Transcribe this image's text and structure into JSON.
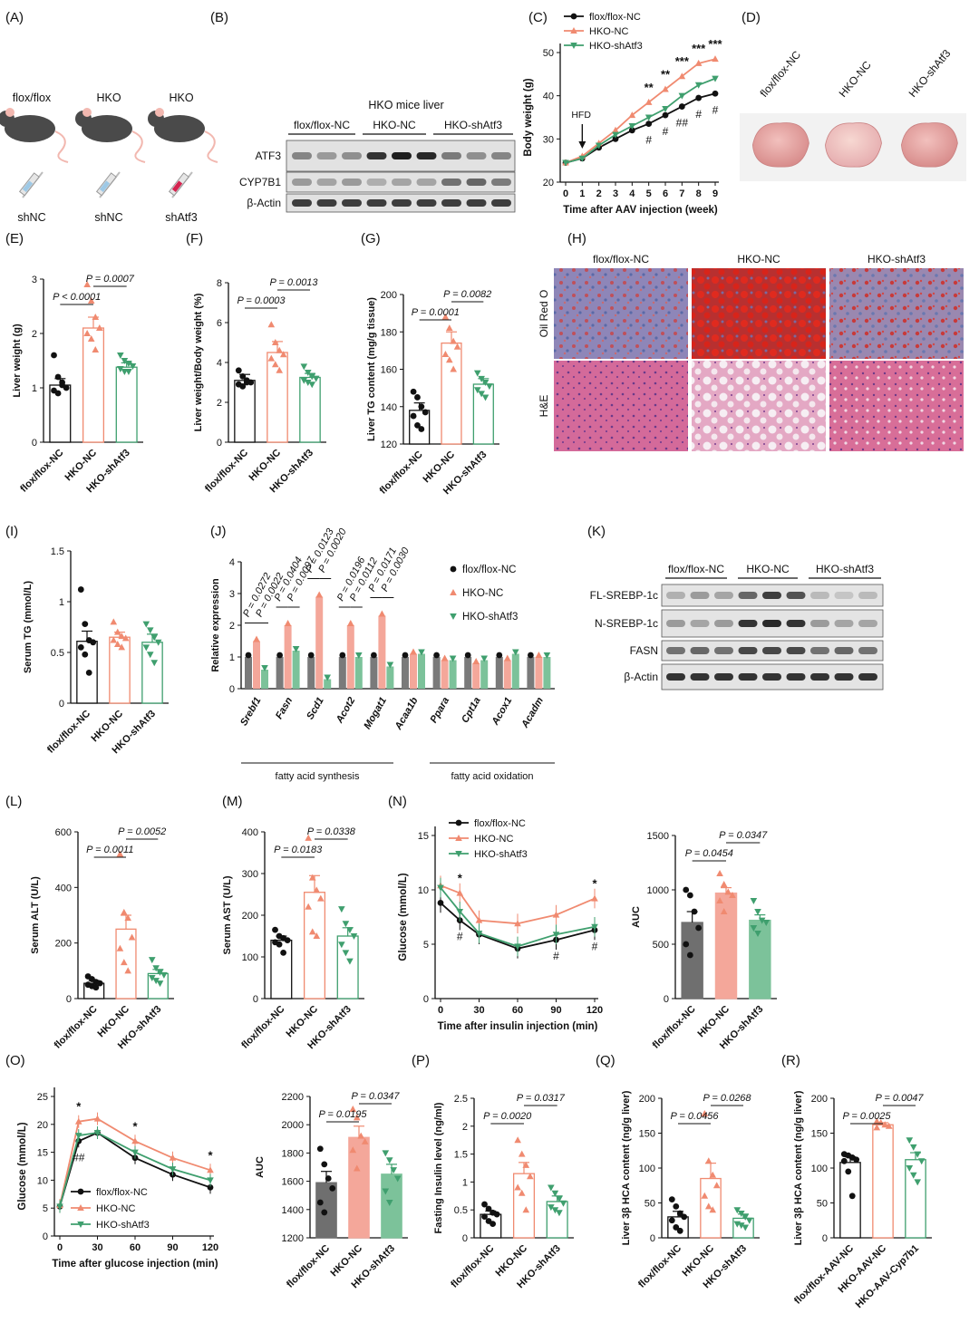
{
  "colors": {
    "black": "#111111",
    "salmon": "#f08a70",
    "green": "#3f9f6e",
    "grey": "#7a7a7a"
  },
  "groups": [
    "flox/flox-NC",
    "HKO-NC",
    "HKO-shAtf3"
  ],
  "panel_letters": [
    "(A)",
    "(B)",
    "(C)",
    "(D)",
    "(E)",
    "(F)",
    "(G)",
    "(H)",
    "(I)",
    "(J)",
    "(K)",
    "(L)",
    "(M)",
    "(N)",
    "(O)",
    "(P)",
    "(Q)",
    "(R)"
  ],
  "panelA": {
    "mice": [
      "flox/flox",
      "HKO",
      "HKO"
    ],
    "injections": [
      "shNC",
      "shNC",
      "shAtf3"
    ]
  },
  "panelB": {
    "title": "HKO mice liver",
    "groups": [
      "flox/flox-NC",
      "HKO-NC",
      "HKO-shAtf3"
    ],
    "proteins": [
      "ATF3",
      "CYP7B1",
      "β-Actin"
    ]
  },
  "panelD": {
    "labels": [
      "flox/flox-NC",
      "HKO-NC",
      "HKO-shAtf3"
    ]
  },
  "panelH": {
    "columns": [
      "flox/flox-NC",
      "HKO-NC",
      "HKO-shAtf3"
    ],
    "rows": [
      "Oil Red O",
      "H&E"
    ]
  },
  "panelK": {
    "groups": [
      "flox/flox-NC",
      "HKO-NC",
      "HKO-shAtf3"
    ],
    "proteins": [
      "FL-SREBP-1c",
      "N-SREBP-1c",
      "FASN",
      "β-Actin"
    ]
  },
  "chart_data": [
    {
      "id": "C",
      "type": "line",
      "xlabel": "Time after AAV injection (week)",
      "ylabel": "Body weight (g)",
      "ylim": [
        20,
        50
      ],
      "yticks": [
        20,
        30,
        40,
        50
      ],
      "x": [
        0,
        1,
        2,
        3,
        4,
        5,
        6,
        7,
        8,
        9
      ],
      "annotation": "HFD",
      "series": [
        {
          "name": "flox/flox-NC",
          "values": [
            24.5,
            25.5,
            28,
            30,
            32,
            33.5,
            35.5,
            37.5,
            39.5,
            40.5
          ]
        },
        {
          "name": "HKO-NC",
          "values": [
            24.5,
            26,
            29,
            32,
            35.5,
            38.5,
            41.5,
            44.5,
            47.5,
            48.5
          ]
        },
        {
          "name": "HKO-shAtf3",
          "values": [
            24.5,
            25.5,
            28.5,
            31,
            33,
            35,
            37,
            40,
            42.5,
            44
          ]
        }
      ],
      "stars": [
        {
          "x": 5,
          "label": "**"
        },
        {
          "x": 6,
          "label": "**"
        },
        {
          "x": 7,
          "label": "***"
        },
        {
          "x": 8,
          "label": "***"
        },
        {
          "x": 9,
          "label": "***"
        }
      ],
      "hashes": [
        {
          "x": 5,
          "label": "#"
        },
        {
          "x": 6,
          "label": "#"
        },
        {
          "x": 7,
          "label": "##"
        },
        {
          "x": 8,
          "label": "#"
        },
        {
          "x": 9,
          "label": "#"
        }
      ]
    },
    {
      "id": "E",
      "type": "bar",
      "ylabel": "Liver weight (g)",
      "ylim": [
        0,
        3
      ],
      "yticks": [
        0,
        1,
        2,
        3
      ],
      "categories": [
        "flox/flox-NC",
        "HKO-NC",
        "HKO-shAtf3"
      ],
      "values": [
        1.05,
        2.1,
        1.38
      ],
      "sem": [
        0.12,
        0.2,
        0.08
      ],
      "points": [
        [
          1.6,
          1.2,
          1.05,
          1.0,
          0.95,
          0.9,
          1.1
        ],
        [
          2.9,
          2.6,
          2.3,
          2.1,
          2.0,
          1.9,
          1.7
        ],
        [
          1.6,
          1.5,
          1.45,
          1.4,
          1.35,
          1.3,
          1.3
        ]
      ],
      "comparisons": [
        {
          "a": 0,
          "b": 1,
          "label": "P < 0.0001"
        },
        {
          "a": 1,
          "b": 2,
          "label": "P = 0.0007"
        }
      ]
    },
    {
      "id": "F",
      "type": "bar",
      "ylabel": "Liver weight/Body weight (%)",
      "ylim": [
        0,
        8
      ],
      "yticks": [
        0,
        2,
        4,
        6,
        8
      ],
      "categories": [
        "flox/flox-NC",
        "HKO-NC",
        "HKO-shAtf3"
      ],
      "values": [
        3.1,
        4.5,
        3.25
      ],
      "sem": [
        0.3,
        0.55,
        0.2
      ],
      "points": [
        [
          3.6,
          3.3,
          3.1,
          3.0,
          2.9,
          2.8,
          3.0
        ],
        [
          5.9,
          5.0,
          4.6,
          4.4,
          4.2,
          3.9,
          3.6
        ],
        [
          3.8,
          3.5,
          3.3,
          3.2,
          3.1,
          3.0,
          2.9
        ]
      ],
      "comparisons": [
        {
          "a": 0,
          "b": 1,
          "label": "P = 0.0003"
        },
        {
          "a": 1,
          "b": 2,
          "label": "P = 0.0013"
        }
      ]
    },
    {
      "id": "G",
      "type": "bar",
      "ylabel": "Liver TG content (mg/g tissue)",
      "ylim": [
        120,
        200
      ],
      "yticks": [
        120,
        140,
        160,
        180,
        200
      ],
      "categories": [
        "flox/flox-NC",
        "HKO-NC",
        "HKO-shAtf3"
      ],
      "values": [
        138,
        174,
        152
      ],
      "sem": [
        4,
        6,
        3
      ],
      "points": [
        [
          148,
          145,
          140,
          137,
          135,
          130,
          128
        ],
        [
          188,
          182,
          175,
          172,
          168,
          165,
          160
        ],
        [
          158,
          155,
          153,
          151,
          149,
          147,
          145
        ]
      ],
      "comparisons": [
        {
          "a": 0,
          "b": 1,
          "label": "P = 0.0001"
        },
        {
          "a": 1,
          "b": 2,
          "label": "P = 0.0082"
        }
      ]
    },
    {
      "id": "I",
      "type": "bar",
      "ylabel": "Serum TG (mmol/L)",
      "ylim": [
        0,
        1.5
      ],
      "yticks": [
        0,
        0.5,
        1.0,
        1.5
      ],
      "categories": [
        "flox/flox-NC",
        "HKO-NC",
        "HKO-shAtf3"
      ],
      "values": [
        0.61,
        0.65,
        0.6
      ],
      "sem": [
        0.1,
        0.05,
        0.08
      ],
      "points": [
        [
          1.12,
          0.78,
          0.62,
          0.6,
          0.55,
          0.48,
          0.3
        ],
        [
          0.8,
          0.7,
          0.66,
          0.64,
          0.62,
          0.58,
          0.55
        ],
        [
          0.78,
          0.72,
          0.65,
          0.6,
          0.55,
          0.48,
          0.4
        ]
      ],
      "comparisons": []
    },
    {
      "id": "J",
      "type": "bar",
      "ylabel": "Relative expression",
      "ylim": [
        0,
        4
      ],
      "yticks": [
        0,
        1,
        2,
        3,
        4
      ],
      "categories": [
        "Srebf1",
        "Fasn",
        "Scd1",
        "Acot2",
        "Mogat1",
        "Acaa1b",
        "Ppara",
        "Cpt1a",
        "Acox1",
        "Acadm"
      ],
      "series": [
        {
          "name": "flox/flox-NC",
          "values": [
            1,
            1,
            1,
            1,
            1,
            1,
            1,
            1,
            1,
            1
          ]
        },
        {
          "name": "HKO-NC",
          "values": [
            1.5,
            2.0,
            2.9,
            2.0,
            2.3,
            1.1,
            0.9,
            0.8,
            0.9,
            1.0
          ]
        },
        {
          "name": "HKO-shAtf3",
          "values": [
            0.6,
            1.2,
            0.3,
            1.0,
            0.7,
            1.1,
            0.9,
            0.9,
            1.1,
            1.0
          ]
        }
      ],
      "pvalues": [
        {
          "cat": 0,
          "labels": [
            "P = 0.0272",
            "P = 0.0022"
          ]
        },
        {
          "cat": 1,
          "labels": [
            "P = 0.0404",
            "P = 0.0097"
          ]
        },
        {
          "cat": 2,
          "labels": [
            "P = 0.0123",
            "P = 0.0020"
          ]
        },
        {
          "cat": 3,
          "labels": [
            "P = 0.0196",
            "P = 0.0112"
          ]
        },
        {
          "cat": 4,
          "labels": [
            "P = 0.0171",
            "P = 0.0030"
          ]
        }
      ],
      "group_labels": [
        "fatty acid synthesis",
        "fatty acid oxidation"
      ]
    },
    {
      "id": "L",
      "type": "bar",
      "ylabel": "Serum ALT (U/L)",
      "ylim": [
        0,
        600
      ],
      "yticks": [
        0,
        200,
        400,
        600
      ],
      "categories": [
        "flox/flox-NC",
        "HKO-NC",
        "HKO-shAtf3"
      ],
      "values": [
        55,
        250,
        90
      ],
      "sem": [
        10,
        50,
        15
      ],
      "points": [
        [
          80,
          70,
          60,
          55,
          50,
          45,
          40
        ],
        [
          520,
          310,
          290,
          220,
          180,
          130,
          100
        ],
        [
          140,
          110,
          95,
          85,
          75,
          65,
          55
        ]
      ],
      "comparisons": [
        {
          "a": 0,
          "b": 1,
          "label": "P = 0.0011"
        },
        {
          "a": 1,
          "b": 2,
          "label": "P = 0.0052"
        }
      ]
    },
    {
      "id": "M",
      "type": "bar",
      "ylabel": "Serum AST (U/L)",
      "ylim": [
        0,
        400
      ],
      "yticks": [
        0,
        100,
        200,
        300,
        400
      ],
      "categories": [
        "flox/flox-NC",
        "HKO-NC",
        "HKO-shAtf3"
      ],
      "values": [
        140,
        255,
        150
      ],
      "sem": [
        10,
        40,
        20
      ],
      "points": [
        [
          165,
          150,
          145,
          140,
          135,
          130,
          110
        ],
        [
          385,
          290,
          260,
          240,
          220,
          160,
          150
        ],
        [
          215,
          180,
          165,
          150,
          130,
          110,
          90
        ]
      ],
      "comparisons": [
        {
          "a": 0,
          "b": 1,
          "label": "P = 0.0183"
        },
        {
          "a": 1,
          "b": 2,
          "label": "P = 0.0338"
        }
      ]
    },
    {
      "id": "N",
      "type": "line",
      "xlabel": "Time after insulin injection (min)",
      "ylabel": "Glucose (mmol/L)",
      "ylim": [
        0,
        15
      ],
      "yticks": [
        0,
        5,
        10,
        15
      ],
      "x": [
        0,
        15,
        30,
        60,
        90,
        120
      ],
      "xticks": [
        0,
        30,
        60,
        90,
        120
      ],
      "series": [
        {
          "name": "flox/flox-NC",
          "values": [
            8.8,
            7.2,
            5.9,
            4.6,
            5.4,
            6.3
          ]
        },
        {
          "name": "HKO-NC",
          "values": [
            10.4,
            9.7,
            7.2,
            6.9,
            7.7,
            9.2
          ]
        },
        {
          "name": "HKO-shAtf3",
          "values": [
            10.2,
            8.0,
            6.0,
            4.8,
            5.9,
            6.6
          ]
        }
      ],
      "stars": [
        {
          "x": 15,
          "label": "*"
        },
        {
          "x": 120,
          "label": "*"
        }
      ],
      "hashes": [
        {
          "x": 15,
          "label": "#"
        },
        {
          "x": 90,
          "label": "#"
        },
        {
          "x": 120,
          "label": "#"
        }
      ]
    },
    {
      "id": "N-AUC",
      "type": "bar",
      "ylabel": "AUC",
      "ylim": [
        0,
        1500
      ],
      "yticks": [
        0,
        500,
        1000,
        1500
      ],
      "categories": [
        "flox/flox-NC",
        "HKO-NC",
        "HKO-shAtf3"
      ],
      "values": [
        700,
        970,
        720
      ],
      "sem": [
        100,
        50,
        50
      ],
      "points": [
        [
          1000,
          950,
          800,
          650,
          500,
          400
        ],
        [
          1150,
          1050,
          980,
          950,
          900,
          800
        ],
        [
          900,
          800,
          720,
          700,
          650,
          600
        ]
      ],
      "comparisons": [
        {
          "a": 0,
          "b": 1,
          "label": "P = 0.0454"
        },
        {
          "a": 1,
          "b": 2,
          "label": "P = 0.0347"
        }
      ]
    },
    {
      "id": "O",
      "type": "line",
      "xlabel": "Time after glucose injection (min)",
      "ylabel": "Glucose (mmol/L)",
      "ylim": [
        0,
        25
      ],
      "yticks": [
        0,
        5,
        10,
        15,
        20,
        25
      ],
      "x": [
        0,
        15,
        30,
        60,
        90,
        120
      ],
      "xticks": [
        0,
        30,
        60,
        90,
        120
      ],
      "series": [
        {
          "name": "flox/flox-NC",
          "values": [
            5.3,
            17.0,
            18.5,
            14.0,
            11.0,
            8.7
          ]
        },
        {
          "name": "HKO-NC",
          "values": [
            5.5,
            20.5,
            21.0,
            17.0,
            14.0,
            11.8
          ]
        },
        {
          "name": "HKO-shAtf3",
          "values": [
            5.3,
            18.0,
            18.5,
            15.0,
            12.0,
            10.0
          ]
        }
      ],
      "stars": [
        {
          "x": 15,
          "label": "*"
        },
        {
          "x": 60,
          "label": "*"
        },
        {
          "x": 120,
          "label": "*"
        }
      ],
      "hashes": [
        {
          "x": 15,
          "label": "##"
        }
      ]
    },
    {
      "id": "O-AUC",
      "type": "bar",
      "ylabel": "AUC",
      "ylim": [
        1200,
        2200
      ],
      "yticks": [
        1200,
        1400,
        1600,
        1800,
        2000,
        2200
      ],
      "categories": [
        "flox/flox-NC",
        "HKO-NC",
        "HKO-shAtf3"
      ],
      "values": [
        1590,
        1910,
        1650
      ],
      "sem": [
        80,
        80,
        70
      ],
      "points": [
        [
          1830,
          1720,
          1620,
          1550,
          1450,
          1380
        ],
        [
          2110,
          2050,
          1920,
          1880,
          1820,
          1690
        ],
        [
          1800,
          1750,
          1680,
          1620,
          1530,
          1450
        ]
      ],
      "comparisons": [
        {
          "a": 0,
          "b": 1,
          "label": "P = 0.0195"
        },
        {
          "a": 1,
          "b": 2,
          "label": "P = 0.0347"
        }
      ]
    },
    {
      "id": "P",
      "type": "bar",
      "ylabel": "Fasting Insulin level (ng/ml)",
      "ylim": [
        0,
        2.5
      ],
      "yticks": [
        0,
        0.5,
        1.0,
        1.5,
        2.0,
        2.5
      ],
      "categories": [
        "flox/flox-NC",
        "HKO-NC",
        "HKO-shAtf3"
      ],
      "values": [
        0.42,
        1.15,
        0.65
      ],
      "sem": [
        0.06,
        0.2,
        0.1
      ],
      "points": [
        [
          0.6,
          0.52,
          0.45,
          0.42,
          0.38,
          0.3,
          0.25
        ],
        [
          1.75,
          1.5,
          1.3,
          1.1,
          0.9,
          0.8,
          0.5
        ],
        [
          0.9,
          0.8,
          0.7,
          0.62,
          0.55,
          0.5,
          0.45
        ]
      ],
      "comparisons": [
        {
          "a": 0,
          "b": 1,
          "label": "P = 0.0020"
        },
        {
          "a": 1,
          "b": 2,
          "label": "P = 0.0317"
        }
      ]
    },
    {
      "id": "Q",
      "type": "bar",
      "ylabel": "Liver 3β HCA content (ng/g liver)",
      "ylim": [
        0,
        200
      ],
      "yticks": [
        0,
        50,
        100,
        150,
        200
      ],
      "categories": [
        "flox/flox-NC",
        "HKO-NC",
        "HKO-shAtf3"
      ],
      "values": [
        30,
        85,
        28
      ],
      "sem": [
        8,
        22,
        6
      ],
      "points": [
        [
          55,
          45,
          35,
          30,
          25,
          15,
          10
        ],
        [
          178,
          110,
          90,
          75,
          60,
          45,
          40
        ],
        [
          40,
          35,
          30,
          25,
          20,
          18,
          15
        ]
      ],
      "comparisons": [
        {
          "a": 0,
          "b": 1,
          "label": "P = 0.0456"
        },
        {
          "a": 1,
          "b": 2,
          "label": "P = 0.0268"
        }
      ]
    },
    {
      "id": "R",
      "type": "bar",
      "ylabel": "Liver 3β HCA content (ng/g liver)",
      "ylim": [
        0,
        200
      ],
      "yticks": [
        0,
        50,
        100,
        150,
        200
      ],
      "categories": [
        "flox/flox-AAV-NC",
        "HKO-AAV-NC",
        "HKO-AAV-Cyp7b1"
      ],
      "values": [
        108,
        162,
        112
      ],
      "sem": [
        8,
        3,
        10
      ],
      "points": [
        [
          120,
          118,
          115,
          112,
          110,
          95,
          60
        ],
        [
          167,
          165,
          162,
          160,
          158
        ],
        [
          140,
          130,
          120,
          110,
          100,
          90,
          80
        ]
      ],
      "comparisons": [
        {
          "a": 0,
          "b": 1,
          "label": "P = 0.0025"
        },
        {
          "a": 1,
          "b": 2,
          "label": "P = 0.0047"
        }
      ]
    }
  ]
}
